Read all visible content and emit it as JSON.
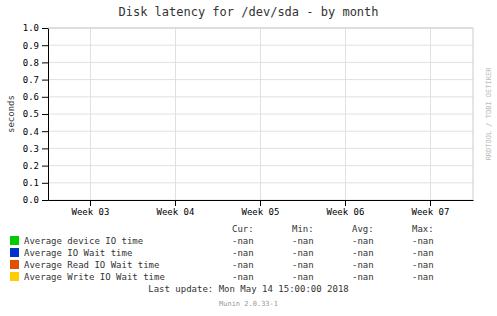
{
  "chart_data": {
    "type": "line",
    "title": "Disk latency for /dev/sda - by month",
    "y_label": "seconds",
    "categories": [
      "Week 03",
      "Week 04",
      "Week 05",
      "Week 06",
      "Week 07"
    ],
    "series": [
      {
        "name": "Average device IO time",
        "color": "#00cc00",
        "values": [
          null,
          null,
          null,
          null,
          null
        ],
        "legend_values": [
          "-nan",
          "-nan",
          "-nan",
          "-nan"
        ]
      },
      {
        "name": "Average IO Wait time",
        "color": "#0033cc",
        "values": [
          null,
          null,
          null,
          null,
          null
        ],
        "legend_values": [
          "-nan",
          "-nan",
          "-nan",
          "-nan"
        ]
      },
      {
        "name": "Average Read IO Wait time",
        "color": "#e05000",
        "values": [
          null,
          null,
          null,
          null,
          null
        ],
        "legend_values": [
          "-nan",
          "-nan",
          "-nan",
          "-nan"
        ]
      },
      {
        "name": "Average Write IO Wait time",
        "color": "#ffcc00",
        "values": [
          null,
          null,
          null,
          null,
          null
        ],
        "legend_values": [
          "-nan",
          "-nan",
          "-nan",
          "-nan"
        ]
      }
    ],
    "legend_columns": [
      "Cur:",
      "Min:",
      "Avg:",
      "Max:"
    ],
    "ylim": [
      0.0,
      1.0
    ],
    "yticks": [
      {
        "value": 0.0,
        "label": "0.0"
      },
      0.1,
      0.2,
      0.3,
      0.4,
      0.5,
      0.6,
      0.7,
      0.8,
      0.9,
      {
        "value": 1.0,
        "label": "1.0"
      }
    ],
    "grid": true,
    "legend": "bottom",
    "annotations": [
      "RRDTOOL / TOBI OETIKER",
      "Last update:  Mon May 14 15:00:00 2018",
      "Munin 2.0.33-1"
    ]
  }
}
